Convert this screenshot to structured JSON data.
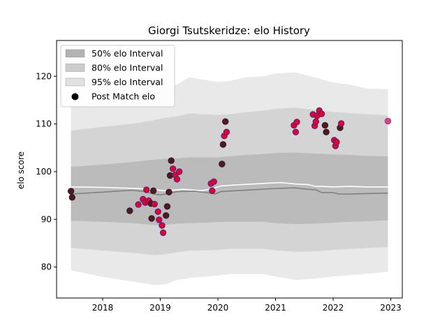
{
  "chart_data": {
    "type": "scatter",
    "title": "Giorgi Tsutskeridze: elo History",
    "xlabel": "",
    "ylabel": "elo score",
    "xlim": [
      2017.2,
      2023.2
    ],
    "ylim": [
      73.5,
      127.5
    ],
    "xticks": [
      2018,
      2019,
      2020,
      2021,
      2022,
      2023
    ],
    "yticks": [
      80,
      90,
      100,
      110,
      120
    ],
    "grid": false,
    "legend_position": "top-left",
    "legend": [
      {
        "label": "50% elo Interval",
        "kind": "band",
        "color": "#b3b3b3"
      },
      {
        "label": "80% elo Interval",
        "kind": "band",
        "color": "#cccccc"
      },
      {
        "label": "95% elo Interval",
        "kind": "band",
        "color": "#e2e2e2"
      },
      {
        "label": "Post Match elo",
        "kind": "marker",
        "color": "#000000"
      }
    ],
    "bands": [
      {
        "name": "95% elo Interval",
        "color": "#e2e2e2",
        "x": [
          2017.45,
          2018.0,
          2018.5,
          2018.9,
          2019.1,
          2019.3,
          2019.5,
          2019.8,
          2020.0,
          2020.2,
          2020.5,
          2020.8,
          2021.0,
          2021.35,
          2021.7,
          2021.85,
          2022.0,
          2022.3,
          2022.6,
          2022.95
        ],
        "upper": [
          113.8,
          115.0,
          116.0,
          117.3,
          117.8,
          118.3,
          119.8,
          119.2,
          118.8,
          119.0,
          119.8,
          120.0,
          120.6,
          120.8,
          119.7,
          119.2,
          118.7,
          118.2,
          117.4,
          117.3
        ],
        "lower": [
          79.3,
          77.9,
          77.0,
          76.2,
          76.4,
          77.3,
          77.7,
          78.0,
          78.2,
          78.5,
          78.5,
          78.5,
          78.0,
          77.3,
          77.6,
          77.8,
          78.0,
          78.3,
          78.6,
          79.0
        ]
      },
      {
        "name": "80% elo Interval",
        "color": "#cccccc",
        "x": [
          2017.45,
          2018.0,
          2018.5,
          2018.9,
          2019.1,
          2019.3,
          2019.5,
          2019.8,
          2020.0,
          2020.2,
          2020.5,
          2020.8,
          2021.0,
          2021.35,
          2021.7,
          2021.85,
          2022.0,
          2022.3,
          2022.6,
          2022.95
        ],
        "upper": [
          108.6,
          109.4,
          110.0,
          110.8,
          111.3,
          111.6,
          112.2,
          112.0,
          111.9,
          112.0,
          112.5,
          112.8,
          113.2,
          113.4,
          112.9,
          112.7,
          112.5,
          112.3,
          112.0,
          111.8
        ],
        "lower": [
          84.0,
          83.5,
          83.0,
          82.5,
          82.7,
          83.1,
          83.4,
          83.5,
          83.6,
          83.8,
          83.8,
          83.8,
          83.5,
          83.2,
          83.3,
          83.4,
          83.6,
          83.8,
          84.0,
          84.2
        ]
      },
      {
        "name": "50% elo Interval",
        "color": "#b3b3b3",
        "x": [
          2017.45,
          2018.0,
          2018.5,
          2018.9,
          2019.1,
          2019.3,
          2019.5,
          2019.8,
          2020.0,
          2020.2,
          2020.5,
          2020.8,
          2021.0,
          2021.35,
          2021.7,
          2021.85,
          2022.0,
          2022.3,
          2022.6,
          2022.95
        ],
        "upper": [
          101.0,
          101.5,
          102.0,
          102.5,
          102.7,
          102.8,
          103.0,
          103.0,
          103.0,
          103.2,
          103.5,
          103.7,
          103.9,
          104.0,
          103.8,
          103.7,
          103.6,
          103.5,
          103.3,
          103.2
        ],
        "lower": [
          89.7,
          89.5,
          89.2,
          88.8,
          88.9,
          89.1,
          89.2,
          89.3,
          89.4,
          89.5,
          89.5,
          89.5,
          89.2,
          89.0,
          89.1,
          89.2,
          89.3,
          89.5,
          89.6,
          89.8
        ]
      }
    ],
    "lines": [
      {
        "name": "mean",
        "color": "#ffffff",
        "x": [
          2017.45,
          2018.0,
          2018.5,
          2018.7,
          2018.9,
          2019.1,
          2019.4,
          2019.7,
          2019.9,
          2020.05,
          2020.3,
          2020.6,
          2020.9,
          2021.1,
          2021.35,
          2021.55,
          2021.7,
          2021.8,
          2022.0,
          2022.3,
          2022.6,
          2022.95
        ],
        "y": [
          96.8,
          96.7,
          96.5,
          96.4,
          96.2,
          96.0,
          96.3,
          96.0,
          96.4,
          97.0,
          97.2,
          97.4,
          97.6,
          97.7,
          97.4,
          97.3,
          96.9,
          96.9,
          96.8,
          96.9,
          96.8,
          96.8
        ]
      },
      {
        "name": "median",
        "color": "#808080",
        "x": [
          2017.45,
          2018.0,
          2018.5,
          2018.75,
          2018.85,
          2019.0,
          2019.3,
          2019.6,
          2019.8,
          2019.95,
          2020.05,
          2020.3,
          2020.6,
          2020.9,
          2021.1,
          2021.35,
          2021.55,
          2021.7,
          2021.8,
          2022.0,
          2022.1,
          2022.3,
          2022.6,
          2022.95
        ],
        "y": [
          95.3,
          95.7,
          96.1,
          95.8,
          95.4,
          95.1,
          95.8,
          95.9,
          95.6,
          95.3,
          95.8,
          96.0,
          96.2,
          96.4,
          96.5,
          96.6,
          96.3,
          96.2,
          95.6,
          95.6,
          95.3,
          95.3,
          95.4,
          95.5
        ]
      }
    ],
    "points": [
      {
        "x": 2017.45,
        "y": 95.9,
        "kind": "plain"
      },
      {
        "x": 2017.47,
        "y": 94.6,
        "kind": "plain"
      },
      {
        "x": 2018.47,
        "y": 91.8,
        "kind": "plain"
      },
      {
        "x": 2018.62,
        "y": 93.1,
        "kind": "win"
      },
      {
        "x": 2018.7,
        "y": 94.2,
        "kind": "win"
      },
      {
        "x": 2018.74,
        "y": 93.5,
        "kind": "win"
      },
      {
        "x": 2018.76,
        "y": 96.2,
        "kind": "win"
      },
      {
        "x": 2018.8,
        "y": 93.9,
        "kind": "win"
      },
      {
        "x": 2018.84,
        "y": 93.3,
        "kind": "plain"
      },
      {
        "x": 2018.88,
        "y": 96.0,
        "kind": "plain"
      },
      {
        "x": 2018.9,
        "y": 93.2,
        "kind": "win"
      },
      {
        "x": 2018.85,
        "y": 90.2,
        "kind": "plain"
      },
      {
        "x": 2018.96,
        "y": 91.6,
        "kind": "win"
      },
      {
        "x": 2018.98,
        "y": 89.9,
        "kind": "win"
      },
      {
        "x": 2019.03,
        "y": 88.7,
        "kind": "win"
      },
      {
        "x": 2019.05,
        "y": 87.2,
        "kind": "win"
      },
      {
        "x": 2019.1,
        "y": 90.8,
        "kind": "plain"
      },
      {
        "x": 2019.12,
        "y": 92.7,
        "kind": "plain"
      },
      {
        "x": 2019.15,
        "y": 95.7,
        "kind": "plain"
      },
      {
        "x": 2019.17,
        "y": 99.2,
        "kind": "plain"
      },
      {
        "x": 2019.19,
        "y": 102.3,
        "kind": "plain"
      },
      {
        "x": 2019.22,
        "y": 100.6,
        "kind": "win"
      },
      {
        "x": 2019.26,
        "y": 99.3,
        "kind": "win"
      },
      {
        "x": 2019.29,
        "y": 98.4,
        "kind": "win"
      },
      {
        "x": 2019.33,
        "y": 100.0,
        "kind": "win"
      },
      {
        "x": 2019.88,
        "y": 97.5,
        "kind": "win"
      },
      {
        "x": 2019.9,
        "y": 96.0,
        "kind": "win"
      },
      {
        "x": 2019.93,
        "y": 97.9,
        "kind": "win"
      },
      {
        "x": 2020.07,
        "y": 101.6,
        "kind": "plain"
      },
      {
        "x": 2020.09,
        "y": 105.7,
        "kind": "plain"
      },
      {
        "x": 2020.11,
        "y": 107.5,
        "kind": "win"
      },
      {
        "x": 2020.13,
        "y": 110.5,
        "kind": "plain"
      },
      {
        "x": 2020.15,
        "y": 108.3,
        "kind": "win"
      },
      {
        "x": 2021.32,
        "y": 109.7,
        "kind": "win"
      },
      {
        "x": 2021.35,
        "y": 108.3,
        "kind": "win"
      },
      {
        "x": 2021.37,
        "y": 110.4,
        "kind": "win"
      },
      {
        "x": 2021.65,
        "y": 112.0,
        "kind": "win"
      },
      {
        "x": 2021.68,
        "y": 109.6,
        "kind": "win"
      },
      {
        "x": 2021.7,
        "y": 110.5,
        "kind": "win"
      },
      {
        "x": 2021.72,
        "y": 111.7,
        "kind": "win"
      },
      {
        "x": 2021.76,
        "y": 112.8,
        "kind": "win"
      },
      {
        "x": 2021.8,
        "y": 112.1,
        "kind": "win"
      },
      {
        "x": 2021.86,
        "y": 109.7,
        "kind": "plain"
      },
      {
        "x": 2021.88,
        "y": 108.3,
        "kind": "plain"
      },
      {
        "x": 2022.02,
        "y": 106.6,
        "kind": "win"
      },
      {
        "x": 2022.04,
        "y": 105.4,
        "kind": "win"
      },
      {
        "x": 2022.06,
        "y": 106.2,
        "kind": "win"
      },
      {
        "x": 2022.12,
        "y": 109.2,
        "kind": "plain"
      },
      {
        "x": 2022.14,
        "y": 110.1,
        "kind": "win"
      },
      {
        "x": 2022.95,
        "y": 110.6,
        "kind": "final"
      }
    ],
    "marker_colors": {
      "plain": {
        "fill": "#4a1c26",
        "stroke": "#3a1420"
      },
      "win": {
        "fill": "#e8002a",
        "stroke": "#3b2a8f"
      },
      "final": {
        "fill": "#e0457a",
        "stroke": "#7a3a9a"
      }
    }
  }
}
